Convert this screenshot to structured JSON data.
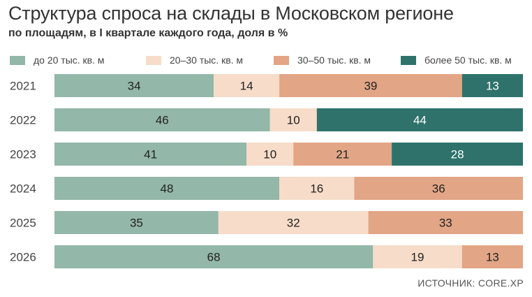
{
  "title": "Структура спроса на склады в Московском регионе",
  "subtitle": "по площадям, в I квартале каждого года, доля в %",
  "source": "ИСТОЧНИК: CORE.XP",
  "colors": {
    "s1": "#93b7a9",
    "s2": "#f6dcc9",
    "s3": "#e2a585",
    "s4": "#2e726b"
  },
  "chart_data": {
    "type": "bar",
    "orientation": "horizontal",
    "stacked": true,
    "categories": [
      "2021",
      "2022",
      "2023",
      "2024",
      "2025",
      "2026"
    ],
    "series": [
      {
        "name": "до 20 тыс. кв. м",
        "values": [
          34,
          46,
          41,
          48,
          35,
          68
        ]
      },
      {
        "name": "20–30 тыс. кв. м",
        "values": [
          14,
          10,
          10,
          16,
          32,
          19
        ]
      },
      {
        "name": "30–50 тыс. кв. м",
        "values": [
          39,
          0,
          21,
          36,
          33,
          13
        ]
      },
      {
        "name": "более 50 тыс. кв. м",
        "values": [
          13,
          44,
          28,
          0,
          0,
          0
        ]
      }
    ],
    "xlim": [
      0,
      100
    ],
    "legend_position": "top",
    "grid": false
  }
}
